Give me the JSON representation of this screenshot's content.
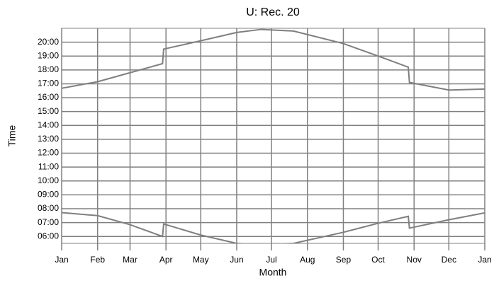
{
  "chart_data": {
    "type": "line",
    "title": "U: Rec. 20",
    "x_label": "Month",
    "y_label": "Time",
    "x": [
      0,
      31,
      59,
      87,
      88,
      120,
      151,
      172,
      200,
      243,
      273,
      299,
      300,
      334,
      365
    ],
    "series": [
      {
        "color": "#7f7f7f",
        "values": [
          16.68,
          17.15,
          17.8,
          18.45,
          19.5,
          20.1,
          20.7,
          20.92,
          20.8,
          19.9,
          19.0,
          18.2,
          17.1,
          16.55,
          16.62
        ]
      },
      {
        "color": "#7f7f7f",
        "values": [
          7.72,
          7.5,
          6.85,
          6.0,
          6.9,
          6.1,
          5.5,
          5.4,
          5.5,
          6.3,
          6.95,
          7.45,
          6.6,
          7.2,
          7.7
        ]
      }
    ],
    "xlim": [
      0,
      365
    ],
    "xticks": [
      {
        "value": 0,
        "label": "Jan"
      },
      {
        "value": 31,
        "label": "Feb"
      },
      {
        "value": 59,
        "label": "Mar"
      },
      {
        "value": 90,
        "label": "Apr"
      },
      {
        "value": 120,
        "label": "May"
      },
      {
        "value": 151,
        "label": "Jun"
      },
      {
        "value": 181,
        "label": "Jul"
      },
      {
        "value": 212,
        "label": "Aug"
      },
      {
        "value": 243,
        "label": "Sep"
      },
      {
        "value": 273,
        "label": "Oct"
      },
      {
        "value": 304,
        "label": "Nov"
      },
      {
        "value": 334,
        "label": "Dec"
      },
      {
        "value": 365,
        "label": "Jan"
      }
    ],
    "ylim": [
      5.5,
      21
    ],
    "yticks": [
      {
        "value": 6,
        "label": "06:00"
      },
      {
        "value": 7,
        "label": "07:00"
      },
      {
        "value": 8,
        "label": "08:00"
      },
      {
        "value": 9,
        "label": "09:00"
      },
      {
        "value": 10,
        "label": "10:00"
      },
      {
        "value": 11,
        "label": "11:00"
      },
      {
        "value": 12,
        "label": "12:00"
      },
      {
        "value": 13,
        "label": "13:00"
      },
      {
        "value": 14,
        "label": "14:00"
      },
      {
        "value": 15,
        "label": "15:00"
      },
      {
        "value": 16,
        "label": "16:00"
      },
      {
        "value": 17,
        "label": "17:00"
      },
      {
        "value": 18,
        "label": "18:00"
      },
      {
        "value": 19,
        "label": "19:00"
      },
      {
        "value": 20,
        "label": "20:00"
      }
    ],
    "grid": true,
    "grid_color": "#808080"
  }
}
